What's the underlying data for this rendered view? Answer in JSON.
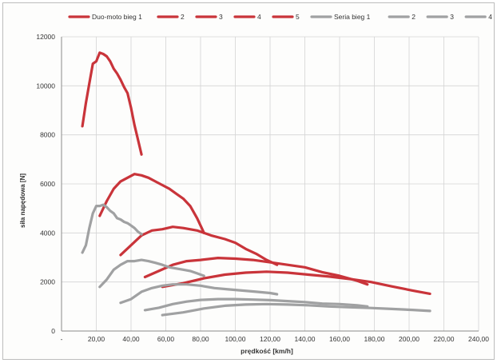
{
  "chart_data": {
    "type": "line",
    "xlabel": "prędkość [km/h]",
    "ylabel": "siła napędowa [N]",
    "xlim": [
      0,
      240
    ],
    "ylim": [
      0,
      12000
    ],
    "x_ticks": [
      "-",
      "20,00",
      "40,00",
      "60,00",
      "80,00",
      "100,00",
      "120,00",
      "140,00",
      "160,00",
      "180,00",
      "200,00",
      "220,00",
      "240,00"
    ],
    "y_ticks": [
      "0",
      "2000",
      "4000",
      "6000",
      "8000",
      "10000",
      "12000"
    ],
    "grid": true,
    "legend_position": "top",
    "series": [
      {
        "name": "Duo-moto bieg 1",
        "color": "#c9343a",
        "points": [
          [
            12,
            8350
          ],
          [
            14,
            9300
          ],
          [
            16,
            10100
          ],
          [
            18,
            10900
          ],
          [
            20,
            11000
          ],
          [
            22,
            11350
          ],
          [
            24,
            11300
          ],
          [
            26,
            11200
          ],
          [
            28,
            11000
          ],
          [
            30,
            10700
          ],
          [
            32,
            10500
          ],
          [
            34,
            10250
          ],
          [
            36,
            9950
          ],
          [
            38,
            9700
          ],
          [
            40,
            9100
          ],
          [
            42,
            8400
          ],
          [
            44,
            7800
          ],
          [
            46,
            7200
          ]
        ]
      },
      {
        "name": "2",
        "color": "#c9343a",
        "points": [
          [
            22,
            4700
          ],
          [
            26,
            5300
          ],
          [
            30,
            5800
          ],
          [
            34,
            6100
          ],
          [
            38,
            6250
          ],
          [
            42,
            6400
          ],
          [
            46,
            6350
          ],
          [
            50,
            6250
          ],
          [
            54,
            6100
          ],
          [
            58,
            5950
          ],
          [
            62,
            5800
          ],
          [
            66,
            5600
          ],
          [
            70,
            5400
          ],
          [
            74,
            5100
          ],
          [
            78,
            4600
          ],
          [
            82,
            4000
          ]
        ]
      },
      {
        "name": "3",
        "color": "#c9343a",
        "points": [
          [
            34,
            3100
          ],
          [
            40,
            3500
          ],
          [
            46,
            3900
          ],
          [
            52,
            4100
          ],
          [
            58,
            4150
          ],
          [
            64,
            4250
          ],
          [
            70,
            4200
          ],
          [
            78,
            4100
          ],
          [
            86,
            3900
          ],
          [
            94,
            3750
          ],
          [
            100,
            3600
          ],
          [
            106,
            3350
          ],
          [
            112,
            3150
          ],
          [
            118,
            2900
          ],
          [
            124,
            2700
          ]
        ]
      },
      {
        "name": "4",
        "color": "#c9343a",
        "points": [
          [
            48,
            2200
          ],
          [
            56,
            2450
          ],
          [
            64,
            2700
          ],
          [
            72,
            2850
          ],
          [
            80,
            2900
          ],
          [
            90,
            2980
          ],
          [
            100,
            2950
          ],
          [
            110,
            2900
          ],
          [
            120,
            2800
          ],
          [
            130,
            2700
          ],
          [
            140,
            2600
          ],
          [
            150,
            2400
          ],
          [
            160,
            2250
          ],
          [
            170,
            2050
          ],
          [
            176,
            1900
          ]
        ]
      },
      {
        "name": "5",
        "color": "#c9343a",
        "points": [
          [
            58,
            1800
          ],
          [
            70,
            1950
          ],
          [
            82,
            2150
          ],
          [
            94,
            2300
          ],
          [
            106,
            2380
          ],
          [
            118,
            2420
          ],
          [
            130,
            2380
          ],
          [
            142,
            2300
          ],
          [
            154,
            2220
          ],
          [
            166,
            2120
          ],
          [
            178,
            2000
          ],
          [
            190,
            1820
          ],
          [
            202,
            1650
          ],
          [
            212,
            1520
          ]
        ]
      },
      {
        "name": "Seria bieg 1",
        "color": "#a0a1a2",
        "points": [
          [
            12,
            3200
          ],
          [
            14,
            3500
          ],
          [
            16,
            4200
          ],
          [
            18,
            4800
          ],
          [
            20,
            5100
          ],
          [
            22,
            5100
          ],
          [
            24,
            5150
          ],
          [
            26,
            5050
          ],
          [
            28,
            4900
          ],
          [
            30,
            4800
          ],
          [
            32,
            4600
          ],
          [
            34,
            4550
          ],
          [
            36,
            4450
          ],
          [
            38,
            4400
          ],
          [
            40,
            4300
          ],
          [
            42,
            4200
          ],
          [
            44,
            4050
          ],
          [
            46,
            3950
          ]
        ]
      },
      {
        "name": "2",
        "color": "#a0a1a2",
        "points": [
          [
            22,
            1800
          ],
          [
            26,
            2100
          ],
          [
            30,
            2500
          ],
          [
            34,
            2700
          ],
          [
            38,
            2850
          ],
          [
            42,
            2850
          ],
          [
            46,
            2900
          ],
          [
            50,
            2850
          ],
          [
            54,
            2780
          ],
          [
            58,
            2700
          ],
          [
            62,
            2600
          ],
          [
            66,
            2550
          ],
          [
            70,
            2500
          ],
          [
            74,
            2450
          ],
          [
            78,
            2350
          ],
          [
            82,
            2250
          ]
        ]
      },
      {
        "name": "3",
        "color": "#a0a1a2",
        "points": [
          [
            34,
            1150
          ],
          [
            40,
            1300
          ],
          [
            46,
            1600
          ],
          [
            52,
            1750
          ],
          [
            58,
            1850
          ],
          [
            64,
            1900
          ],
          [
            72,
            1900
          ],
          [
            80,
            1850
          ],
          [
            88,
            1750
          ],
          [
            96,
            1700
          ],
          [
            104,
            1650
          ],
          [
            112,
            1600
          ],
          [
            120,
            1550
          ],
          [
            124,
            1500
          ]
        ]
      },
      {
        "name": "4",
        "color": "#a0a1a2",
        "points": [
          [
            48,
            850
          ],
          [
            56,
            950
          ],
          [
            64,
            1100
          ],
          [
            72,
            1200
          ],
          [
            80,
            1270
          ],
          [
            90,
            1300
          ],
          [
            100,
            1300
          ],
          [
            110,
            1280
          ],
          [
            120,
            1260
          ],
          [
            130,
            1220
          ],
          [
            140,
            1180
          ],
          [
            150,
            1120
          ],
          [
            160,
            1100
          ],
          [
            170,
            1050
          ],
          [
            176,
            1000
          ]
        ]
      },
      {
        "name": "5",
        "color": "#a0a1a2",
        "points": [
          [
            58,
            650
          ],
          [
            70,
            760
          ],
          [
            82,
            920
          ],
          [
            94,
            1030
          ],
          [
            106,
            1080
          ],
          [
            118,
            1100
          ],
          [
            130,
            1080
          ],
          [
            142,
            1050
          ],
          [
            154,
            1000
          ],
          [
            166,
            970
          ],
          [
            178,
            940
          ],
          [
            190,
            900
          ],
          [
            202,
            860
          ],
          [
            212,
            820
          ]
        ]
      }
    ]
  }
}
